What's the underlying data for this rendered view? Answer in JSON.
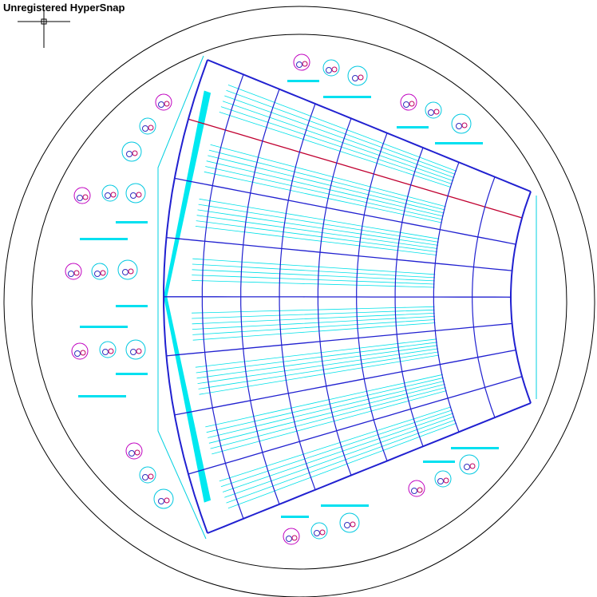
{
  "watermark": "Unregistered HyperSnap"
}
